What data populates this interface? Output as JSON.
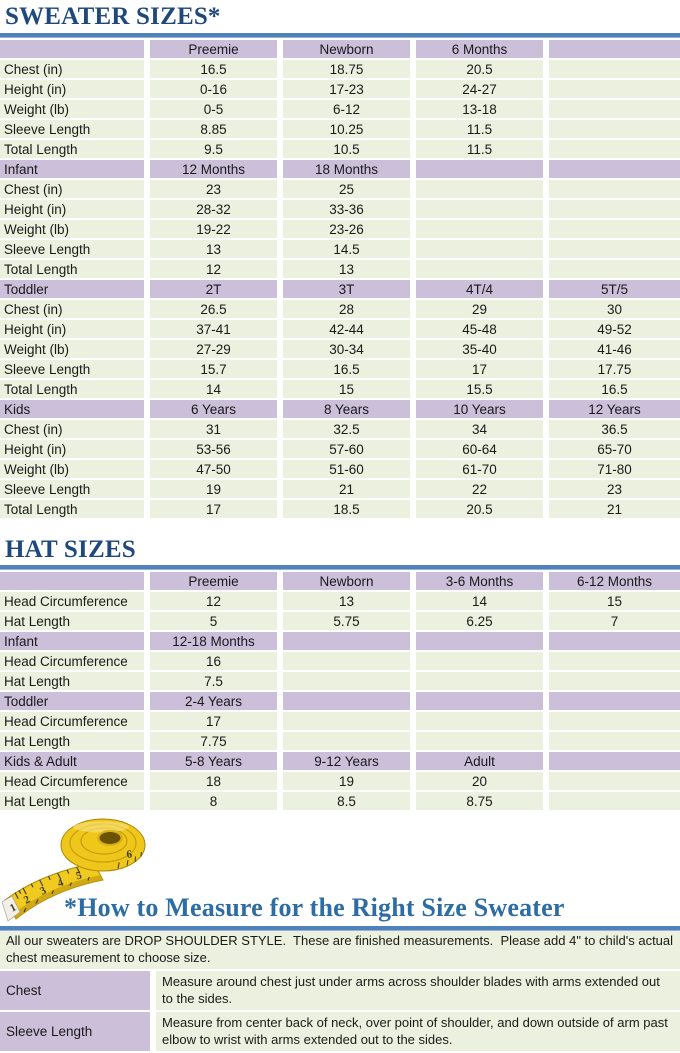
{
  "colors": {
    "title_blue": "#1F497D",
    "measure_title_blue": "#2E6DA4",
    "rule_blue": "#4F81BD",
    "section_lavender": "#CBBFDA",
    "row_green": "#EBF1DE",
    "tape_yellow": "#EFC81C"
  },
  "sweater": {
    "title": "SWEATER SIZES*",
    "rows": [
      {
        "type": "head",
        "cells": [
          "",
          "Preemie",
          "Newborn",
          "6 Months",
          ""
        ]
      },
      {
        "type": "data",
        "cells": [
          "Chest (in)",
          "16.5",
          "18.75",
          "20.5",
          ""
        ]
      },
      {
        "type": "data",
        "cells": [
          "Height (in)",
          "0-16",
          "17-23",
          "24-27",
          ""
        ]
      },
      {
        "type": "data",
        "cells": [
          "Weight (lb)",
          "0-5",
          "6-12",
          "13-18",
          ""
        ]
      },
      {
        "type": "data",
        "cells": [
          "Sleeve Length",
          "8.85",
          "10.25",
          "11.5",
          ""
        ]
      },
      {
        "type": "data",
        "cells": [
          "Total Length",
          "9.5",
          "10.5",
          "11.5",
          ""
        ]
      },
      {
        "type": "head",
        "cells": [
          "Infant",
          "12 Months",
          "18 Months",
          "",
          ""
        ]
      },
      {
        "type": "data",
        "cells": [
          "Chest (in)",
          "23",
          "25",
          "",
          ""
        ]
      },
      {
        "type": "data",
        "cells": [
          "Height (in)",
          "28-32",
          "33-36",
          "",
          ""
        ]
      },
      {
        "type": "data",
        "cells": [
          "Weight (lb)",
          "19-22",
          "23-26",
          "",
          ""
        ]
      },
      {
        "type": "data",
        "cells": [
          "Sleeve Length",
          "13",
          "14.5",
          "",
          ""
        ]
      },
      {
        "type": "data",
        "cells": [
          "Total Length",
          "12",
          "13",
          "",
          ""
        ]
      },
      {
        "type": "head",
        "cells": [
          "Toddler",
          "2T",
          "3T",
          "4T/4",
          "5T/5"
        ]
      },
      {
        "type": "data",
        "cells": [
          "Chest (in)",
          "26.5",
          "28",
          "29",
          "30"
        ]
      },
      {
        "type": "data",
        "cells": [
          "Height (in)",
          "37-41",
          "42-44",
          "45-48",
          "49-52"
        ]
      },
      {
        "type": "data",
        "cells": [
          "Weight (lb)",
          "27-29",
          "30-34",
          "35-40",
          "41-46"
        ]
      },
      {
        "type": "data",
        "cells": [
          "Sleeve Length",
          "15.7",
          "16.5",
          "17",
          "17.75"
        ]
      },
      {
        "type": "data",
        "cells": [
          "Total Length",
          "14",
          "15",
          "15.5",
          "16.5"
        ]
      },
      {
        "type": "head",
        "cells": [
          "Kids",
          "6 Years",
          "8 Years",
          "10 Years",
          "12 Years"
        ]
      },
      {
        "type": "data",
        "cells": [
          "Chest (in)",
          "31",
          "32.5",
          "34",
          "36.5"
        ]
      },
      {
        "type": "data",
        "cells": [
          "Height (in)",
          "53-56",
          "57-60",
          "60-64",
          "65-70"
        ]
      },
      {
        "type": "data",
        "cells": [
          "Weight (lb)",
          "47-50",
          "51-60",
          "61-70",
          "71-80"
        ]
      },
      {
        "type": "data",
        "cells": [
          "Sleeve Length",
          "19",
          "21",
          "22",
          "23"
        ]
      },
      {
        "type": "data",
        "cells": [
          "Total Length",
          "17",
          "18.5",
          "20.5",
          "21"
        ]
      }
    ]
  },
  "hat": {
    "title": "HAT SIZES",
    "rows": [
      {
        "type": "head",
        "cells": [
          "",
          "Preemie",
          "Newborn",
          "3-6 Months",
          "6-12 Months"
        ]
      },
      {
        "type": "data",
        "cells": [
          "Head Circumference",
          "12",
          "13",
          "14",
          "15"
        ]
      },
      {
        "type": "data",
        "cells": [
          "Hat Length",
          "5",
          "5.75",
          "6.25",
          "7"
        ]
      },
      {
        "type": "head",
        "cells": [
          "Infant",
          "12-18 Months",
          "",
          "",
          ""
        ]
      },
      {
        "type": "data",
        "cells": [
          "Head Circumference",
          "16",
          "",
          "",
          ""
        ]
      },
      {
        "type": "data",
        "cells": [
          "Hat Length",
          "7.5",
          "",
          "",
          ""
        ]
      },
      {
        "type": "head",
        "cells": [
          "Toddler",
          "2-4 Years",
          "",
          "",
          ""
        ]
      },
      {
        "type": "data",
        "cells": [
          "Head Circumference",
          "17",
          "",
          "",
          ""
        ]
      },
      {
        "type": "data",
        "cells": [
          "Hat Length",
          "7.75",
          "",
          "",
          ""
        ]
      },
      {
        "type": "head",
        "cells": [
          "Kids & Adult",
          "5-8 Years",
          "9-12 Years",
          "Adult",
          ""
        ]
      },
      {
        "type": "data",
        "cells": [
          "Head Circumference",
          "18",
          "19",
          "20",
          ""
        ]
      },
      {
        "type": "data",
        "cells": [
          "Hat Length",
          "8",
          "8.5",
          "8.75",
          ""
        ]
      }
    ]
  },
  "measure": {
    "title": "*How to Measure for the Right Size Sweater",
    "intro": "All our sweaters are DROP SHOULDER STYLE.  These are finished measurements.  Please add 4\" to child's actual chest measurement to choose size.",
    "rows": [
      {
        "label": "Chest",
        "desc": "Measure around chest just under arms across shoulder blades with arms extended out to the sides."
      },
      {
        "label": "Sleeve Length",
        "desc": "Measure from center back of neck, over point of shoulder, and down outside of arm past elbow to wrist with arms extended out to the sides."
      }
    ]
  },
  "tape": {
    "name": "measuring-tape",
    "numbers": [
      "1",
      "2",
      "3",
      "4",
      "5",
      "6"
    ]
  }
}
